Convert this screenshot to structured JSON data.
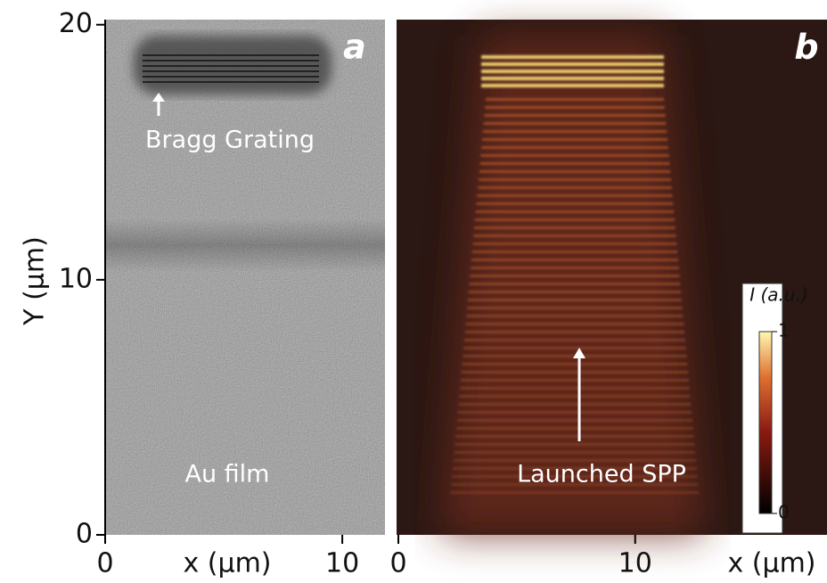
{
  "y_axis": {
    "label": "Y (μm)",
    "ylim": [
      0,
      20.2
    ],
    "ticks": [
      0,
      10,
      20
    ]
  },
  "panels": [
    {
      "letter": "a",
      "x_label": "x (μm)",
      "xlim": [
        0,
        11.8
      ],
      "xticks": [
        0,
        10
      ],
      "annotations": [
        "Bragg Grating",
        "Au film"
      ]
    },
    {
      "letter": "b",
      "x_label": "x (μm)",
      "xlim": [
        0,
        18.1
      ],
      "xticks": [
        0,
        10
      ],
      "annotations": [
        "Launched SPP"
      ],
      "colorbar": {
        "title": "I (a.u.)",
        "ticks": [
          0,
          1
        ],
        "range": [
          0,
          1
        ]
      }
    }
  ]
}
